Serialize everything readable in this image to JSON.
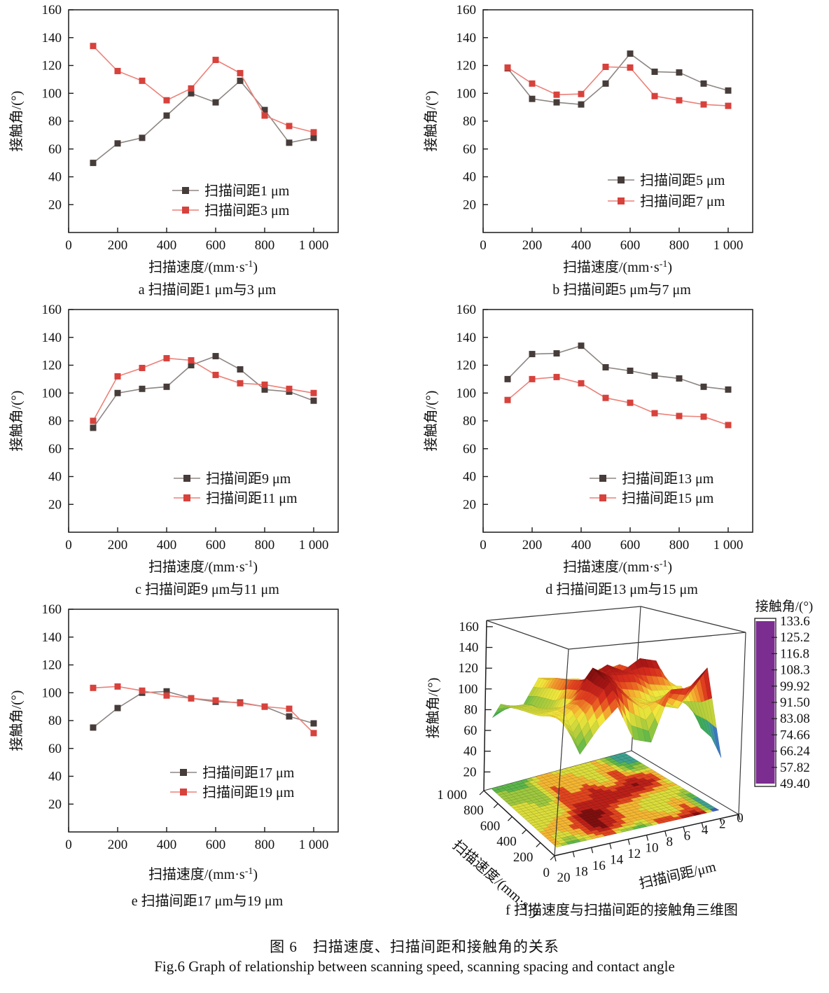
{
  "figure": {
    "caption_cn": "图 6　扫描速度、扫描间距和接触角的关系",
    "caption_en": "Fig.6 Graph of relationship between scanning speed, scanning spacing and contact angle"
  },
  "palette": {
    "dark_marker": "#463c3a",
    "dark_line": "#8d8683",
    "red_marker": "#d7423c",
    "red_line": "#ec8078",
    "axis": "#1a1a1a",
    "box_edge": "#3a3a3a"
  },
  "axis_common": {
    "xlabel_main": "扫描速度/(mm·s",
    "xlabel_sup": "-1",
    "xlabel_end": ")",
    "ylabel": "接触角/(°)",
    "x_ticks": [
      0,
      200,
      400,
      600,
      800,
      1000
    ],
    "x_tick_labels": [
      "0",
      "200",
      "400",
      "600",
      "800",
      "1 000"
    ],
    "y_ticks": [
      20,
      40,
      60,
      80,
      100,
      120,
      140,
      160
    ],
    "xlim": [
      0,
      1100
    ],
    "ylim": [
      0,
      160
    ]
  },
  "chart_data": [
    {
      "id": "a",
      "type": "line",
      "caption": "a  扫描间距1 μm与3 μm",
      "x": [
        100,
        200,
        300,
        400,
        500,
        600,
        700,
        800,
        900,
        1000
      ],
      "series": [
        {
          "name": "扫描间距1 μm",
          "palette": "dark",
          "values": [
            50,
            64,
            68,
            84,
            100,
            93.5,
            109,
            88,
            64.5,
            68
          ]
        },
        {
          "name": "扫描间距3 μm",
          "palette": "red",
          "values": [
            134,
            116,
            109,
            95,
            103.5,
            124,
            114.5,
            84,
            76.5,
            72
          ]
        }
      ],
      "legend_x": 246,
      "legend_rows": [
        272,
        300
      ]
    },
    {
      "id": "b",
      "type": "line",
      "caption": "b  扫描间距5 μm与7 μm",
      "x": [
        100,
        200,
        300,
        400,
        500,
        600,
        700,
        800,
        900,
        1000
      ],
      "series": [
        {
          "name": "扫描间距5 μm",
          "palette": "dark",
          "values": [
            118,
            96,
            93.5,
            92,
            107,
            128.5,
            115.5,
            115,
            107,
            102
          ]
        },
        {
          "name": "扫描间距7 μm",
          "palette": "red",
          "values": [
            118.5,
            107,
            99,
            99.5,
            119,
            118.5,
            98,
            95,
            92,
            91
          ]
        }
      ],
      "legend_x": 276,
      "legend_rows": [
        257,
        287
      ]
    },
    {
      "id": "c",
      "type": "line",
      "caption": "c  扫描间距9 μm与11 μm",
      "x": [
        100,
        200,
        300,
        400,
        500,
        600,
        700,
        800,
        900,
        1000
      ],
      "series": [
        {
          "name": "扫描间距9 μm",
          "palette": "dark",
          "values": [
            75,
            100,
            103,
            104.5,
            120,
            126.5,
            117,
            102.5,
            101,
            94.5
          ]
        },
        {
          "name": "扫描间距11 μm",
          "palette": "red",
          "values": [
            80,
            112,
            118,
            125,
            123.5,
            113,
            107,
            106,
            103,
            100
          ]
        }
      ],
      "legend_x": 248,
      "legend_rows": [
        255,
        283
      ]
    },
    {
      "id": "d",
      "type": "line",
      "caption": "d  扫描间距13 μm与15 μm",
      "x": [
        100,
        200,
        300,
        400,
        500,
        600,
        700,
        800,
        900,
        1000
      ],
      "series": [
        {
          "name": "扫描间距13 μm",
          "palette": "dark",
          "values": [
            110,
            128,
            128.5,
            134,
            118.5,
            116,
            112.5,
            110.5,
            104.5,
            102.5
          ]
        },
        {
          "name": "扫描间距15 μm",
          "palette": "red",
          "values": [
            95,
            110,
            111.5,
            107,
            96.5,
            93,
            85.5,
            83.5,
            83,
            77
          ]
        }
      ],
      "legend_x": 250,
      "legend_rows": [
        255,
        283
      ]
    },
    {
      "id": "e",
      "type": "line",
      "caption": "e  扫描间距17 μm与19 μm",
      "x": [
        100,
        200,
        300,
        400,
        500,
        600,
        700,
        800,
        900,
        1000
      ],
      "series": [
        {
          "name": "扫描间距17 μm",
          "palette": "dark",
          "values": [
            75,
            89,
            100,
            101,
            96,
            93.5,
            93,
            90,
            83,
            78
          ]
        },
        {
          "name": "扫描间距19 μm",
          "palette": "red",
          "values": [
            103.5,
            104.5,
            101.5,
            98,
            96,
            94.5,
            92.5,
            90,
            88.5,
            71
          ]
        }
      ],
      "legend_x": 243,
      "legend_rows": [
        247,
        275
      ]
    },
    {
      "id": "f",
      "type": "surface3d",
      "caption": "f  扫描速度与扫描间距的接触角三维图",
      "zlabel": "接触角/(°)",
      "spacing_label": "扫描间距/μm",
      "speed_label_main": "扫描速度/(mm·s",
      "speed_label_sup": "-1",
      "speed_label_end": ")",
      "z_ticks": [
        20,
        40,
        60,
        80,
        100,
        120,
        140,
        160
      ],
      "speed_tick_values": [
        0,
        200,
        400,
        600,
        800,
        1000
      ],
      "speed_tick_labels": [
        "0",
        "200",
        "400",
        "600",
        "800",
        "1 000"
      ],
      "spacing_tick_values": [
        20,
        18,
        16,
        14,
        12,
        10,
        8,
        6,
        4,
        2,
        0
      ],
      "speeds": [
        100,
        200,
        300,
        400,
        500,
        600,
        700,
        800,
        900,
        1000
      ],
      "spacings": [
        1,
        3,
        5,
        7,
        9,
        11,
        13,
        15,
        17,
        19
      ],
      "grid": [
        [
          50,
          64,
          68,
          84,
          100,
          93.5,
          109,
          88,
          64.5,
          68
        ],
        [
          134,
          116,
          109,
          95,
          103.5,
          124,
          114.5,
          84,
          76.5,
          72
        ],
        [
          118,
          96,
          93.5,
          92,
          107,
          128.5,
          115.5,
          115,
          107,
          102
        ],
        [
          118.5,
          107,
          99,
          99.5,
          119,
          118.5,
          98,
          95,
          92,
          91
        ],
        [
          75,
          100,
          103,
          104.5,
          120,
          126.5,
          117,
          102.5,
          101,
          94.5
        ],
        [
          80,
          112,
          118,
          125,
          123.5,
          113,
          107,
          106,
          103,
          100
        ],
        [
          110,
          128,
          128.5,
          134,
          118.5,
          116,
          112.5,
          110.5,
          104.5,
          102.5
        ],
        [
          95,
          110,
          111.5,
          107,
          96.5,
          93,
          85.5,
          83.5,
          83,
          77
        ],
        [
          75,
          89,
          100,
          101,
          96,
          93.5,
          93,
          90,
          83,
          78
        ],
        [
          103.5,
          104.5,
          101.5,
          98,
          96,
          94.5,
          92.5,
          90,
          88.5,
          71
        ]
      ],
      "colorbar": {
        "title": "接触角/(°)",
        "tick_labels": [
          "133.6",
          "125.2",
          "116.8",
          "108.3",
          "99.92",
          "91.50",
          "83.08",
          "74.66",
          "66.24",
          "57.82",
          "49.40"
        ],
        "tick_values": [
          133.6,
          125.2,
          116.8,
          108.3,
          99.92,
          91.5,
          83.08,
          74.66,
          66.24,
          57.82,
          49.4
        ],
        "vmin": 49.4,
        "vmax": 133.6
      },
      "colormap": [
        [
          49.4,
          "#7b2d90"
        ],
        [
          57.8,
          "#4a3fb0"
        ],
        [
          63.0,
          "#3a64c2"
        ],
        [
          66.2,
          "#3c80c2"
        ],
        [
          70.5,
          "#3fa290"
        ],
        [
          74.7,
          "#3fae52"
        ],
        [
          83.1,
          "#7cc144"
        ],
        [
          91.5,
          "#c3d23a"
        ],
        [
          99.9,
          "#f2e83c"
        ],
        [
          104.0,
          "#f5b832"
        ],
        [
          108.3,
          "#ef7b26"
        ],
        [
          112.0,
          "#e4481f"
        ],
        [
          116.8,
          "#d62b1e"
        ],
        [
          125.2,
          "#a11414"
        ],
        [
          133.6,
          "#5e0b0b"
        ]
      ]
    }
  ]
}
